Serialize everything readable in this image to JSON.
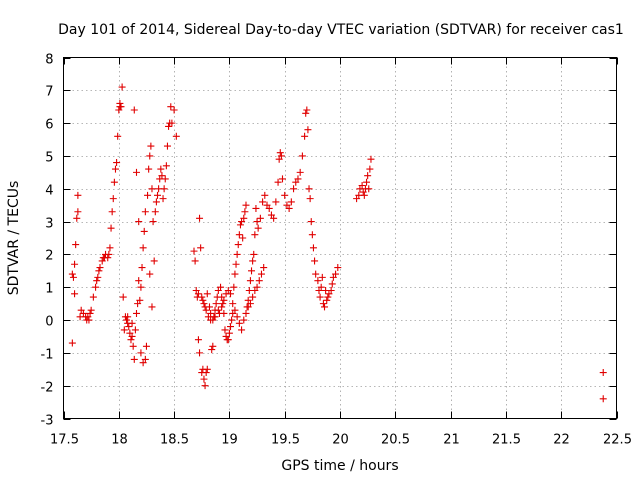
{
  "chart_data": {
    "type": "scatter",
    "title": "Day 101 of 2014, Sidereal Day-to-day VTEC variation (SDTVAR) for receiver cas1",
    "xlabel": "GPS time / hours",
    "ylabel": "SDTVAR / TECUs",
    "xlim": [
      17.5,
      22.5
    ],
    "ylim": [
      -3,
      8
    ],
    "x_ticks": [
      "17.5",
      "18",
      "18.5",
      "19",
      "19.5",
      "20",
      "20.5",
      "21",
      "21.5",
      "22",
      "22.5"
    ],
    "y_ticks": [
      "-3",
      "-2",
      "-1",
      "0",
      "1",
      "2",
      "3",
      "4",
      "5",
      "6",
      "7",
      "8"
    ],
    "grid": true,
    "marker": "+",
    "color": "#e00000",
    "series": [
      {
        "name": "SDTVAR",
        "points": [
          [
            17.58,
            -0.7
          ],
          [
            17.58,
            1.4
          ],
          [
            17.59,
            1.3
          ],
          [
            17.6,
            0.8
          ],
          [
            17.6,
            1.7
          ],
          [
            17.61,
            2.3
          ],
          [
            17.62,
            3.1
          ],
          [
            17.63,
            3.3
          ],
          [
            17.63,
            3.8
          ],
          [
            17.65,
            0.1
          ],
          [
            17.66,
            0.3
          ],
          [
            17.68,
            0.2
          ],
          [
            17.7,
            0.1
          ],
          [
            17.71,
            0.0
          ],
          [
            17.72,
            0.1
          ],
          [
            17.73,
            0.0
          ],
          [
            17.74,
            0.2
          ],
          [
            17.75,
            0.3
          ],
          [
            17.77,
            0.7
          ],
          [
            17.79,
            1.0
          ],
          [
            17.8,
            1.2
          ],
          [
            17.81,
            1.3
          ],
          [
            17.82,
            1.5
          ],
          [
            17.83,
            1.6
          ],
          [
            17.85,
            1.8
          ],
          [
            17.86,
            1.9
          ],
          [
            17.87,
            1.9
          ],
          [
            17.88,
            2.0
          ],
          [
            17.9,
            1.9
          ],
          [
            17.91,
            2.0
          ],
          [
            17.92,
            2.2
          ],
          [
            17.93,
            2.8
          ],
          [
            17.94,
            3.3
          ],
          [
            17.95,
            3.7
          ],
          [
            17.96,
            4.2
          ],
          [
            17.97,
            4.6
          ],
          [
            17.98,
            4.8
          ],
          [
            17.99,
            5.6
          ],
          [
            18.0,
            6.4
          ],
          [
            18.01,
            6.5
          ],
          [
            18.01,
            6.6
          ],
          [
            18.02,
            6.5
          ],
          [
            18.03,
            7.1
          ],
          [
            18.04,
            0.7
          ],
          [
            18.05,
            -0.3
          ],
          [
            18.06,
            0.1
          ],
          [
            18.07,
            0.0
          ],
          [
            18.08,
            -0.1
          ],
          [
            18.09,
            -0.2
          ],
          [
            18.1,
            -0.4
          ],
          [
            18.11,
            -0.6
          ],
          [
            18.12,
            -0.5
          ],
          [
            18.13,
            -0.8
          ],
          [
            18.14,
            -1.2
          ],
          [
            18.15,
            -0.3
          ],
          [
            18.16,
            0.2
          ],
          [
            18.17,
            0.5
          ],
          [
            18.18,
            1.2
          ],
          [
            18.19,
            0.6
          ],
          [
            18.2,
            1.0
          ],
          [
            18.21,
            1.6
          ],
          [
            18.22,
            2.2
          ],
          [
            18.23,
            2.7
          ],
          [
            18.24,
            3.3
          ],
          [
            18.24,
            -1.2
          ],
          [
            18.25,
            -0.8
          ],
          [
            18.26,
            3.8
          ],
          [
            18.27,
            4.6
          ],
          [
            18.28,
            5.0
          ],
          [
            18.29,
            5.3
          ],
          [
            18.3,
            4.0
          ],
          [
            18.31,
            3.0
          ],
          [
            18.32,
            1.8
          ],
          [
            18.33,
            3.3
          ],
          [
            18.34,
            3.6
          ],
          [
            18.35,
            3.8
          ],
          [
            18.36,
            4.0
          ],
          [
            18.37,
            4.3
          ],
          [
            18.38,
            4.6
          ],
          [
            18.39,
            4.4
          ],
          [
            18.4,
            3.7
          ],
          [
            18.41,
            4.0
          ],
          [
            18.42,
            4.3
          ],
          [
            18.43,
            4.7
          ],
          [
            18.44,
            5.3
          ],
          [
            18.45,
            5.9
          ],
          [
            18.46,
            6.0
          ],
          [
            18.47,
            6.5
          ],
          [
            18.48,
            6.0
          ],
          [
            18.5,
            6.4
          ],
          [
            18.52,
            5.6
          ],
          [
            18.14,
            6.4
          ],
          [
            18.16,
            4.5
          ],
          [
            18.18,
            3.0
          ],
          [
            18.28,
            1.4
          ],
          [
            18.3,
            0.4
          ],
          [
            18.12,
            -0.1
          ],
          [
            18.2,
            -1.0
          ],
          [
            18.22,
            -1.3
          ],
          [
            18.08,
            0.1
          ],
          [
            18.68,
            2.1
          ],
          [
            18.69,
            1.8
          ],
          [
            18.7,
            0.9
          ],
          [
            18.71,
            0.7
          ],
          [
            18.72,
            0.8
          ],
          [
            18.72,
            -0.6
          ],
          [
            18.73,
            -1.0
          ],
          [
            18.73,
            3.1
          ],
          [
            18.74,
            2.2
          ],
          [
            18.75,
            -1.6
          ],
          [
            18.76,
            -1.5
          ],
          [
            18.77,
            -1.8
          ],
          [
            18.78,
            -2.0
          ],
          [
            18.79,
            -1.6
          ],
          [
            18.8,
            -1.5
          ],
          [
            18.8,
            0.8
          ],
          [
            18.82,
            0.4
          ],
          [
            18.83,
            0.2
          ],
          [
            18.84,
            -0.9
          ],
          [
            18.85,
            -0.8
          ],
          [
            18.86,
            0.1
          ],
          [
            18.87,
            0.3
          ],
          [
            18.88,
            0.5
          ],
          [
            18.89,
            0.7
          ],
          [
            18.9,
            0.9
          ],
          [
            18.91,
            0.2
          ],
          [
            18.92,
            1.0
          ],
          [
            18.93,
            0.7
          ],
          [
            18.94,
            0.5
          ],
          [
            18.95,
            0.2
          ],
          [
            18.96,
            -0.3
          ],
          [
            18.97,
            -0.5
          ],
          [
            18.98,
            -0.6
          ],
          [
            18.99,
            -0.6
          ],
          [
            19.0,
            -0.4
          ],
          [
            19.01,
            -0.2
          ],
          [
            19.02,
            0.0
          ],
          [
            19.03,
            0.2
          ],
          [
            19.04,
            1.0
          ],
          [
            19.05,
            1.4
          ],
          [
            19.06,
            1.7
          ],
          [
            19.07,
            2.0
          ],
          [
            19.08,
            2.3
          ],
          [
            19.09,
            2.6
          ],
          [
            19.1,
            2.9
          ],
          [
            19.11,
            3.0
          ],
          [
            19.12,
            2.5
          ],
          [
            19.13,
            3.1
          ],
          [
            19.14,
            3.3
          ],
          [
            19.15,
            3.5
          ],
          [
            19.16,
            0.4
          ],
          [
            19.17,
            0.6
          ],
          [
            19.18,
            0.9
          ],
          [
            19.19,
            1.2
          ],
          [
            19.2,
            1.5
          ],
          [
            19.21,
            1.8
          ],
          [
            19.22,
            2.0
          ],
          [
            19.23,
            2.6
          ],
          [
            19.24,
            3.4
          ],
          [
            19.25,
            3.0
          ],
          [
            19.26,
            2.8
          ],
          [
            19.28,
            3.1
          ],
          [
            19.3,
            3.6
          ],
          [
            19.32,
            3.8
          ],
          [
            19.34,
            3.5
          ],
          [
            19.36,
            3.4
          ],
          [
            19.38,
            3.2
          ],
          [
            19.4,
            3.1
          ],
          [
            19.42,
            3.6
          ],
          [
            19.44,
            4.2
          ],
          [
            19.45,
            4.9
          ],
          [
            19.46,
            5.1
          ],
          [
            19.47,
            5.0
          ],
          [
            19.48,
            4.3
          ],
          [
            19.5,
            3.8
          ],
          [
            19.52,
            3.5
          ],
          [
            19.54,
            3.4
          ],
          [
            19.56,
            3.6
          ],
          [
            19.58,
            4.0
          ],
          [
            19.6,
            4.2
          ],
          [
            19.62,
            4.3
          ],
          [
            19.64,
            4.5
          ],
          [
            19.66,
            5.0
          ],
          [
            19.68,
            5.6
          ],
          [
            19.69,
            6.3
          ],
          [
            19.7,
            6.4
          ],
          [
            19.71,
            5.8
          ],
          [
            19.72,
            4.0
          ],
          [
            19.73,
            3.7
          ],
          [
            19.74,
            3.0
          ],
          [
            19.75,
            2.6
          ],
          [
            19.76,
            2.2
          ],
          [
            19.77,
            1.8
          ],
          [
            19.78,
            1.4
          ],
          [
            19.8,
            1.2
          ],
          [
            19.81,
            0.9
          ],
          [
            19.82,
            0.7
          ],
          [
            19.83,
            1.0
          ],
          [
            19.84,
            1.3
          ],
          [
            19.85,
            0.5
          ],
          [
            19.86,
            0.4
          ],
          [
            19.87,
            0.9
          ],
          [
            19.88,
            0.6
          ],
          [
            19.89,
            0.7
          ],
          [
            19.9,
            0.8
          ],
          [
            19.92,
            0.9
          ],
          [
            19.93,
            1.1
          ],
          [
            19.94,
            1.3
          ],
          [
            19.96,
            1.4
          ],
          [
            19.98,
            1.6
          ],
          [
            18.75,
            0.7
          ],
          [
            18.76,
            0.6
          ],
          [
            18.77,
            0.5
          ],
          [
            18.78,
            0.4
          ],
          [
            18.79,
            0.3
          ],
          [
            18.81,
            0.1
          ],
          [
            18.83,
            0.0
          ],
          [
            18.85,
            0.0
          ],
          [
            18.87,
            0.1
          ],
          [
            18.9,
            0.3
          ],
          [
            18.93,
            0.4
          ],
          [
            18.95,
            0.6
          ],
          [
            18.97,
            0.8
          ],
          [
            18.99,
            0.9
          ],
          [
            19.01,
            0.8
          ],
          [
            19.03,
            0.5
          ],
          [
            19.05,
            0.3
          ],
          [
            19.07,
            0.1
          ],
          [
            19.09,
            -0.1
          ],
          [
            19.11,
            -0.3
          ],
          [
            19.13,
            0.0
          ],
          [
            19.15,
            0.2
          ],
          [
            19.17,
            0.4
          ],
          [
            19.19,
            0.5
          ],
          [
            19.21,
            0.7
          ],
          [
            19.23,
            0.9
          ],
          [
            19.25,
            1.0
          ],
          [
            19.27,
            1.2
          ],
          [
            19.29,
            1.4
          ],
          [
            19.31,
            1.6
          ],
          [
            20.15,
            3.7
          ],
          [
            20.17,
            3.8
          ],
          [
            20.18,
            4.0
          ],
          [
            20.2,
            4.1
          ],
          [
            20.21,
            3.9
          ],
          [
            20.22,
            3.8
          ],
          [
            20.23,
            4.0
          ],
          [
            20.24,
            4.2
          ],
          [
            20.25,
            4.4
          ],
          [
            20.26,
            4.0
          ],
          [
            20.27,
            4.6
          ],
          [
            20.28,
            4.9
          ],
          [
            22.38,
            -1.6
          ],
          [
            22.38,
            -2.4
          ]
        ]
      }
    ]
  }
}
